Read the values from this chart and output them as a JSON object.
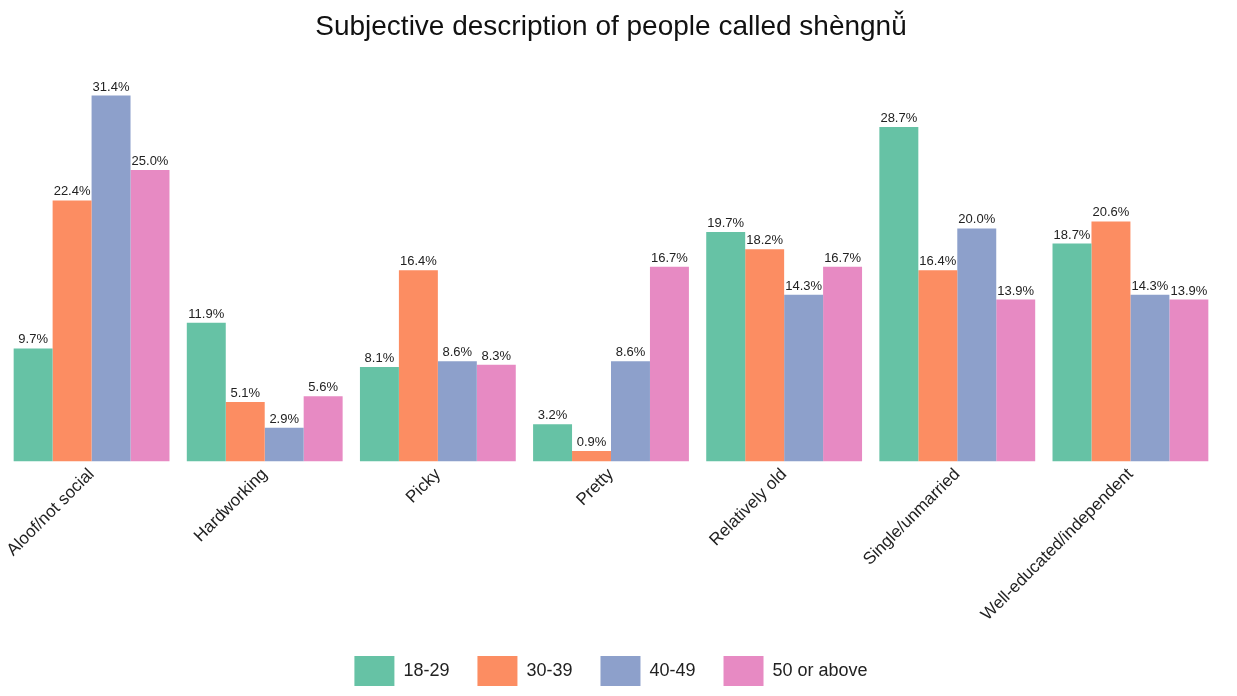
{
  "chart_data": {
    "type": "bar",
    "title": "Subjective description of people called shèngnǚ",
    "categories": [
      "Aloof/not social",
      "Hardworking",
      "Picky",
      "Pretty",
      "Relatively old",
      "Single/unmarried",
      "Well-educated/independent"
    ],
    "series": [
      {
        "name": "18-29",
        "color": "#66c2a5",
        "values": [
          9.7,
          11.9,
          8.1,
          3.2,
          19.7,
          28.7,
          18.7
        ],
        "value_labels": [
          "9.7%",
          "11.9%",
          "8.1%",
          "3.2%",
          "19.7%",
          "28.7%",
          "18.7%"
        ]
      },
      {
        "name": "30-39",
        "color": "#fc8d62",
        "values": [
          22.4,
          5.1,
          16.4,
          0.9,
          18.2,
          16.4,
          20.6
        ],
        "value_labels": [
          "22.4%",
          "5.1%",
          "16.4%",
          "0.9%",
          "18.2%",
          "16.4%",
          "20.6%"
        ]
      },
      {
        "name": "40-49",
        "color": "#8da0cb",
        "values": [
          31.4,
          2.9,
          8.6,
          8.6,
          14.3,
          20.0,
          14.3
        ],
        "value_labels": [
          "31.4%",
          "2.9%",
          "8.6%",
          "8.6%",
          "14.3%",
          "20.0%",
          "14.3%"
        ]
      },
      {
        "name": "50 or above",
        "color": "#e78ac3",
        "values": [
          25.0,
          5.6,
          8.3,
          16.7,
          16.7,
          13.9,
          13.9
        ],
        "value_labels": [
          "25.0%",
          "5.6%",
          "8.3%",
          "16.7%",
          "16.7%",
          "13.9%",
          "13.9%"
        ]
      }
    ],
    "tick_labels": "x",
    "grid": false,
    "legend": "bottom"
  }
}
